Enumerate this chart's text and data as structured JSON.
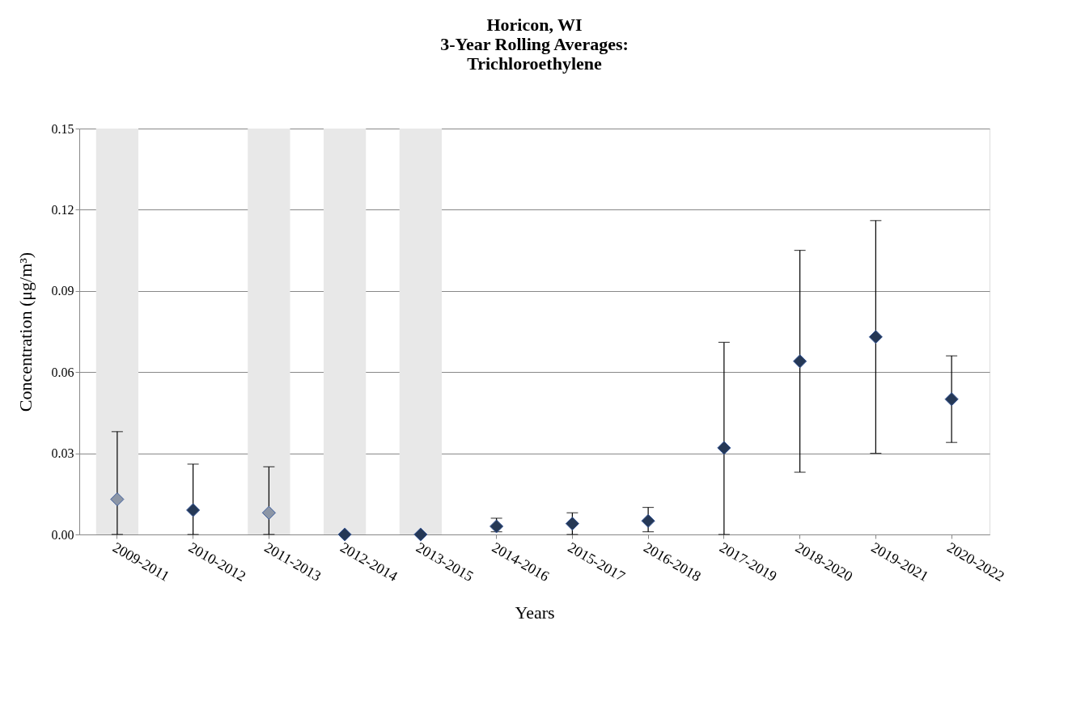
{
  "chart_data": {
    "type": "scatter",
    "title": "Horicon, WI\n3-Year Rolling Averages:\nTrichloroethylene",
    "xlabel": "Years",
    "ylabel": "Concentration (μg/m³)",
    "categories": [
      "2009-2011",
      "2010-2012",
      "2011-2013",
      "2012-2014",
      "2013-2015",
      "2014-2016",
      "2015-2017",
      "2016-2018",
      "2017-2019",
      "2018-2020",
      "2019-2021",
      "2020-2022"
    ],
    "values": [
      0.013,
      0.009,
      0.008,
      0.0,
      0.0,
      0.003,
      0.004,
      0.005,
      0.032,
      0.064,
      0.073,
      0.05
    ],
    "colors": [
      "#8c96a6",
      "#253856",
      "#8c96a6",
      "#253856",
      "#253856",
      "#253856",
      "#253856",
      "#253856",
      "#253856",
      "#253856",
      "#253856",
      "#253856"
    ],
    "errors": [
      [
        0.0,
        0.038
      ],
      [
        0.0,
        0.026
      ],
      [
        0.0,
        0.025
      ],
      null,
      null,
      [
        0.001,
        0.006
      ],
      [
        0.0,
        0.008
      ],
      [
        0.001,
        0.01
      ],
      [
        0.0,
        0.071
      ],
      [
        0.023,
        0.105
      ],
      [
        0.03,
        0.116
      ],
      [
        0.034,
        0.066
      ]
    ],
    "ylim": [
      0,
      0.15
    ],
    "yticks": [
      {
        "value": 0,
        "label": "0.00"
      },
      {
        "value": 0.03,
        "label": "0.03"
      },
      {
        "value": 0.06,
        "label": "0.06"
      },
      {
        "value": 0.09,
        "label": "0.09"
      },
      {
        "value": 0.12,
        "label": "0.12"
      },
      {
        "value": 0.15,
        "label": "0.15"
      }
    ],
    "bands": [
      {
        "axis": "x",
        "from": "2009-2011",
        "to": "2009-2011",
        "color": "#e8e8e8"
      },
      {
        "axis": "x",
        "from": "2011-2013",
        "to": "2011-2013",
        "color": "#e8e8e8"
      },
      {
        "axis": "x",
        "from": "2012-2014",
        "to": "2012-2014",
        "color": "#e8e8e8"
      },
      {
        "axis": "x",
        "from": "2013-2015",
        "to": "2013-2015",
        "color": "#e8e8e8"
      }
    ],
    "grid": "y",
    "marker": "diamond"
  }
}
